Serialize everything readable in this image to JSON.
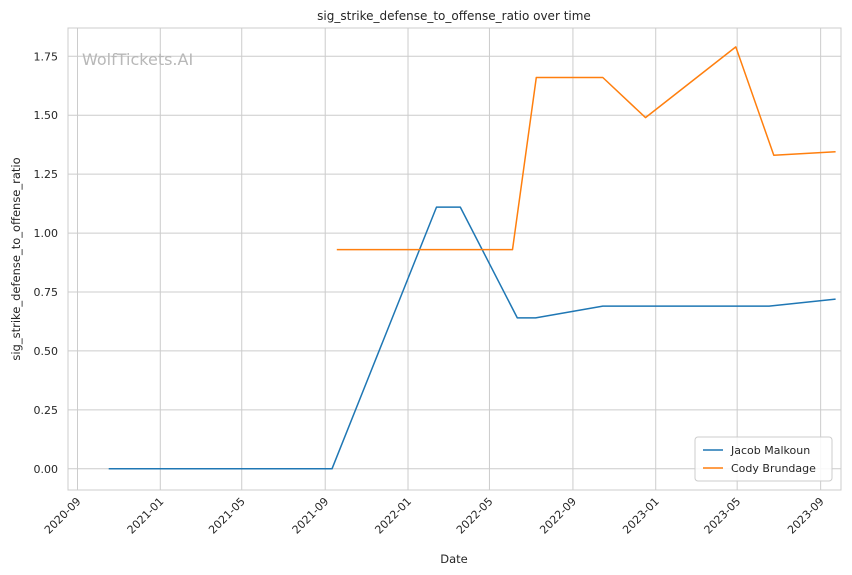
{
  "chart_data": {
    "type": "line",
    "title": "sig_strike_defense_to_offense_ratio over time",
    "xlabel": "Date",
    "ylabel": "sig_strike_defense_to_offense_ratio",
    "watermark": "WolfTickets.AI",
    "grid": true,
    "legend_position": "bottom-right",
    "xlim": [
      "2020-08-18",
      "2023-10-01"
    ],
    "ylim": [
      -0.09,
      1.87
    ],
    "x_ticks": [
      "2020-09",
      "2021-01",
      "2021-05",
      "2021-09",
      "2022-01",
      "2022-05",
      "2022-09",
      "2023-01",
      "2023-05",
      "2023-09"
    ],
    "y_ticks": [
      "0.00",
      "0.25",
      "0.50",
      "0.75",
      "1.00",
      "1.25",
      "1.50",
      "1.75"
    ],
    "series": [
      {
        "name": "Jacob Malkoun",
        "color": "#1f77b4",
        "points": [
          {
            "x": "2020-10-17",
            "y": 0.0
          },
          {
            "x": "2021-09-11",
            "y": 0.0
          },
          {
            "x": "2022-02-12",
            "y": 1.11
          },
          {
            "x": "2022-03-19",
            "y": 1.11
          },
          {
            "x": "2022-06-11",
            "y": 0.64
          },
          {
            "x": "2022-07-08",
            "y": 0.64
          },
          {
            "x": "2022-10-15",
            "y": 0.69
          },
          {
            "x": "2023-06-17",
            "y": 0.69
          },
          {
            "x": "2023-09-23",
            "y": 0.72
          }
        ]
      },
      {
        "name": "Cody Brundage",
        "color": "#ff7f0e",
        "points": [
          {
            "x": "2021-09-18",
            "y": 0.93
          },
          {
            "x": "2022-06-04",
            "y": 0.93
          },
          {
            "x": "2022-07-09",
            "y": 1.66
          },
          {
            "x": "2022-10-15",
            "y": 1.66
          },
          {
            "x": "2022-12-17",
            "y": 1.49
          },
          {
            "x": "2023-04-29",
            "y": 1.79
          },
          {
            "x": "2023-06-24",
            "y": 1.33
          },
          {
            "x": "2023-09-23",
            "y": 1.345
          }
        ]
      }
    ]
  }
}
